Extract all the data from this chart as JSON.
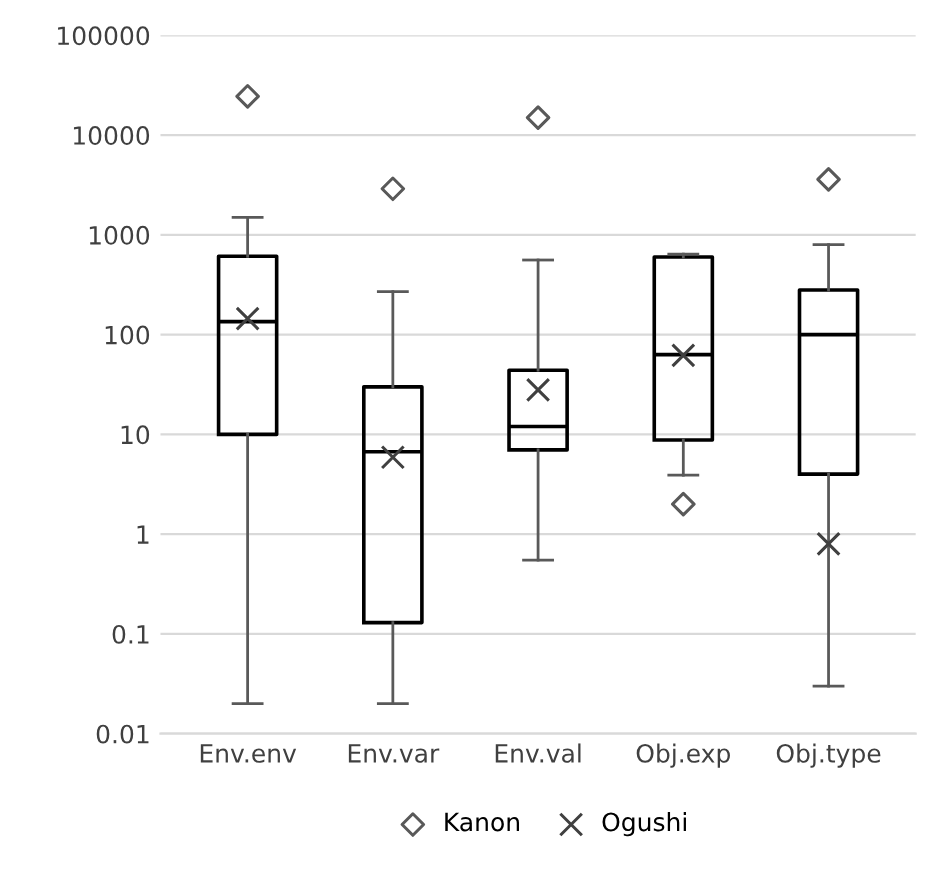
{
  "chart_data": {
    "type": "box",
    "categories": [
      "Env.env",
      "Env.var",
      "Env.val",
      "Obj.exp",
      "Obj.type"
    ],
    "boxes": [
      {
        "low": 0.02,
        "q1": 10,
        "median": 135,
        "q3": 610,
        "high": 1500
      },
      {
        "low": 0.02,
        "q1": 0.13,
        "median": 6.7,
        "q3": 30,
        "high": 270
      },
      {
        "low": 0.55,
        "q1": 7,
        "median": 12,
        "q3": 44,
        "high": 560
      },
      {
        "low": 3.9,
        "q1": 8.8,
        "median": 63,
        "q3": 600,
        "high": 640
      },
      {
        "low": 0.03,
        "q1": 4,
        "median": 100,
        "q3": 280,
        "high": 800
      }
    ],
    "series": [
      {
        "name": "Kanon",
        "type": "scatter",
        "marker": "diamond",
        "color": "#595959",
        "x": [
          "Env.env",
          "Env.var",
          "Env.val",
          "Obj.exp",
          "Obj.type"
        ],
        "values": [
          24500,
          2900,
          15000,
          2.0,
          3600
        ]
      },
      {
        "name": "Ogushi",
        "type": "scatter",
        "marker": "cross",
        "color": "#404040",
        "x": [
          "Env.env",
          "Env.var",
          "Env.val",
          "Obj.exp",
          "Obj.type"
        ],
        "values": [
          145,
          5.9,
          28,
          62,
          0.8
        ]
      }
    ],
    "log": "y",
    "ylim": [
      0.01,
      100000
    ],
    "yticks": [
      0.01,
      0.1,
      1,
      10,
      100,
      1000,
      10000,
      100000
    ],
    "grid": "y",
    "legend": "bottom"
  }
}
